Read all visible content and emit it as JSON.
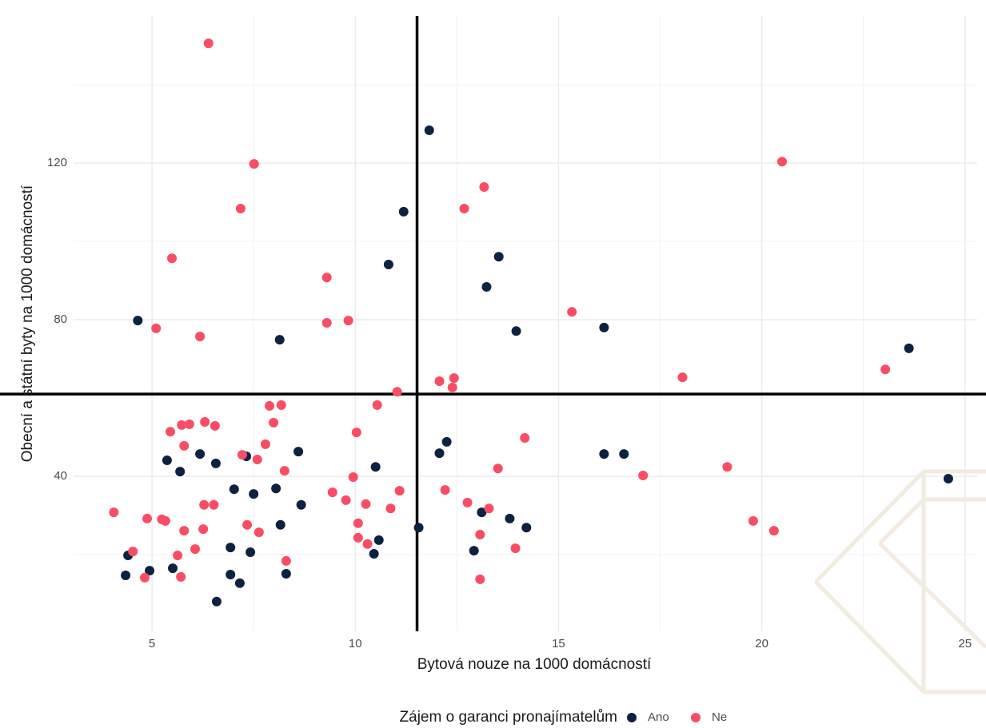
{
  "chart_data": {
    "type": "scatter",
    "x_label": "Bytová nouze na 1000 domácností",
    "y_label": "Obecní a státní byty na 1000 domácností",
    "legend_title": "Zájem o garanci pronajímatelům",
    "legend_position": "bottom",
    "grid": true,
    "xlim": [
      3.07,
      25.3
    ],
    "xticks": [
      5,
      10,
      15,
      20,
      25
    ],
    "ylim": [
      0.4,
      157.6
    ],
    "yticks": [
      40,
      80,
      120
    ],
    "vline": 11.52,
    "hline": 61.0,
    "series": [
      {
        "name": "Ano",
        "color": "#0d2240",
        "x": [
          11.82,
          11.19,
          10.82,
          13.53,
          13.23,
          13.96,
          16.12,
          23.62,
          4.65,
          8.14,
          12.25,
          12.07,
          16.12,
          16.61,
          10.5,
          24.59,
          5.37,
          6.18,
          6.57,
          7.32,
          5.69,
          8.6,
          7.02,
          7.5,
          8.05,
          8.67,
          8.16,
          10.58,
          11.56,
          13.11,
          14.21,
          13.8,
          6.93,
          7.42,
          10.46,
          12.92,
          4.41,
          4.35,
          4.94,
          5.51,
          6.93,
          7.16,
          8.3,
          6.59
        ],
        "values": [
          128.4,
          107.6,
          94.1,
          96.1,
          88.4,
          77.1,
          78.0,
          72.7,
          79.8,
          74.9,
          48.8,
          45.9,
          45.7,
          45.7,
          42.4,
          39.4,
          44.1,
          45.7,
          43.3,
          45.1,
          41.2,
          46.3,
          36.7,
          35.5,
          36.9,
          32.7,
          27.6,
          23.7,
          26.9,
          30.8,
          26.9,
          29.2,
          21.8,
          20.6,
          20.2,
          21.0,
          19.8,
          14.7,
          15.9,
          16.5,
          14.9,
          12.7,
          15.1,
          8.0
        ]
      },
      {
        "name": "Ne",
        "color": "#f94c66",
        "x": [
          6.39,
          7.51,
          20.5,
          13.17,
          7.18,
          12.68,
          5.49,
          9.3,
          15.33,
          5.1,
          9.3,
          9.83,
          6.18,
          18.05,
          23.04,
          12.43,
          12.07,
          12.39,
          11.03,
          10.54,
          7.89,
          8.18,
          5.73,
          5.92,
          6.3,
          6.55,
          7.99,
          5.45,
          10.03,
          14.17,
          7.79,
          5.79,
          7.22,
          7.59,
          13.51,
          8.26,
          19.15,
          17.08,
          9.95,
          11.09,
          9.44,
          12.21,
          9.77,
          10.26,
          12.76,
          10.87,
          13.29,
          6.28,
          6.52,
          4.06,
          4.88,
          5.24,
          5.33,
          10.07,
          7.34,
          19.79,
          13.07,
          5.79,
          6.26,
          7.63,
          20.3,
          10.07,
          10.3,
          6.06,
          13.94,
          4.53,
          5.63,
          8.3,
          5.71,
          4.82,
          13.07
        ],
        "values": [
          150.6,
          119.8,
          120.4,
          113.9,
          108.4,
          108.4,
          95.7,
          90.8,
          82.0,
          77.8,
          79.2,
          79.8,
          75.7,
          65.3,
          67.3,
          65.1,
          64.3,
          62.7,
          61.6,
          58.2,
          58.0,
          58.2,
          53.1,
          53.3,
          53.9,
          52.9,
          53.7,
          51.4,
          51.2,
          49.8,
          48.2,
          47.8,
          45.5,
          44.3,
          42.0,
          41.4,
          42.4,
          40.2,
          39.8,
          36.3,
          35.9,
          36.5,
          33.9,
          32.9,
          33.3,
          31.8,
          31.8,
          32.7,
          32.7,
          30.8,
          29.2,
          29.0,
          28.6,
          28.0,
          27.6,
          28.6,
          25.1,
          26.1,
          26.5,
          25.7,
          26.1,
          24.3,
          22.7,
          21.4,
          21.6,
          20.8,
          19.8,
          18.4,
          14.3,
          14.1,
          13.7
        ]
      }
    ]
  }
}
